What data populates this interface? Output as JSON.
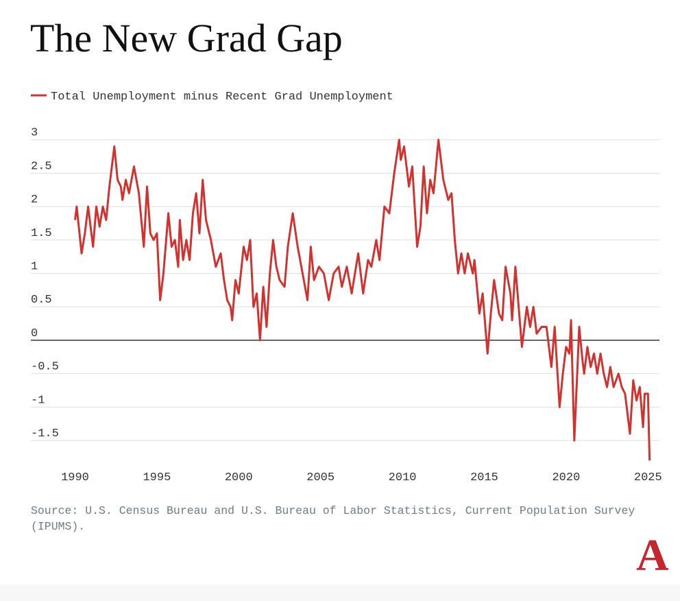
{
  "chart_data": {
    "type": "line",
    "title": "The New Grad Gap",
    "source": "Source: U.S. Census Bureau and U.S. Bureau of Labor Statistics, Current Population Survey (IPUMS).",
    "logo": "A",
    "legend_position": "top-left",
    "grid": true,
    "xlim": [
      1987.3,
      2025.7
    ],
    "ylim": [
      -1.9,
      3.1
    ],
    "xticks": [
      1990,
      1995,
      2000,
      2005,
      2010,
      2015,
      2020,
      2025
    ],
    "yticks": [
      3,
      2.5,
      2,
      1.5,
      1,
      0.5,
      0,
      -0.5,
      -1,
      -1.5
    ],
    "x": [
      1990,
      1990.1,
      1990.4,
      1990.6,
      1990.8,
      1991.1,
      1991.3,
      1991.5,
      1991.7,
      1991.9,
      1992.1,
      1992.3,
      1992.4,
      1992.6,
      1992.8,
      1992.9,
      1993.1,
      1993.3,
      1993.6,
      1993.9,
      1994.2,
      1994.4,
      1994.6,
      1994.8,
      1995.0,
      1995.2,
      1995.4,
      1995.7,
      1995.9,
      1996.1,
      1996.3,
      1996.4,
      1996.6,
      1996.8,
      1997.0,
      1997.2,
      1997.4,
      1997.6,
      1997.8,
      1998.0,
      1998.3,
      1998.6,
      1998.9,
      1999.1,
      1999.3,
      1999.5,
      1999.6,
      1999.8,
      2000.0,
      2000.3,
      2000.5,
      2000.7,
      2000.9,
      2001.1,
      2001.3,
      2001.5,
      2001.7,
      2001.9,
      2002.1,
      2002.3,
      2002.5,
      2002.8,
      2003.0,
      2003.3,
      2003.6,
      2003.9,
      2004.2,
      2004.4,
      2004.6,
      2004.9,
      2005.2,
      2005.5,
      2005.8,
      2006.1,
      2006.3,
      2006.6,
      2006.9,
      2007.3,
      2007.6,
      2007.9,
      2008.1,
      2008.4,
      2008.6,
      2008.9,
      2009.2,
      2009.5,
      2009.8,
      2009.9,
      2010.1,
      2010.4,
      2010.6,
      2010.9,
      2011.1,
      2011.3,
      2011.5,
      2011.7,
      2011.9,
      2012.2,
      2012.5,
      2012.8,
      2013.0,
      2013.2,
      2013.4,
      2013.6,
      2013.8,
      2014.0,
      2014.3,
      2014.4,
      2014.7,
      2014.9,
      2015.2,
      2015.4,
      2015.6,
      2015.9,
      2016.1,
      2016.3,
      2016.6,
      2016.7,
      2016.9,
      2017.1,
      2017.3,
      2017.6,
      2017.8,
      2018.0,
      2018.2,
      2018.5,
      2018.8,
      2019.1,
      2019.3,
      2019.5,
      2019.6,
      2019.8,
      2020.0,
      2020.2,
      2020.3,
      2020.5,
      2020.8,
      2021.0,
      2021.1,
      2021.3,
      2021.5,
      2021.7,
      2021.9,
      2022.1,
      2022.3,
      2022.5,
      2022.7,
      2022.9,
      2023.2,
      2023.4,
      2023.6,
      2023.9,
      2024.1,
      2024.3,
      2024.5,
      2024.7,
      2024.8,
      2025.0,
      2025.1
    ],
    "series": [
      {
        "name": "Total Unemployment minus Recent Grad Unemployment",
        "color": "#d0332f",
        "values": [
          1.8,
          2.0,
          1.3,
          1.6,
          2.0,
          1.4,
          2.0,
          1.7,
          2.0,
          1.8,
          2.3,
          2.7,
          2.9,
          2.4,
          2.3,
          2.1,
          2.4,
          2.2,
          2.6,
          2.2,
          1.4,
          2.3,
          1.6,
          1.5,
          1.6,
          0.6,
          1.0,
          1.9,
          1.4,
          1.5,
          1.1,
          1.8,
          1.2,
          1.5,
          1.2,
          1.9,
          2.2,
          1.6,
          2.4,
          1.8,
          1.5,
          1.1,
          1.3,
          0.9,
          0.6,
          0.5,
          0.3,
          0.9,
          0.7,
          1.4,
          1.2,
          1.5,
          0.5,
          0.7,
          0.0,
          0.8,
          0.2,
          1.0,
          1.5,
          1.1,
          0.9,
          0.8,
          1.4,
          1.9,
          1.4,
          1.0,
          0.6,
          1.4,
          0.9,
          1.1,
          1.0,
          0.6,
          1.0,
          1.1,
          0.8,
          1.1,
          0.7,
          1.3,
          0.7,
          1.2,
          1.1,
          1.5,
          1.2,
          2.0,
          1.9,
          2.5,
          3.0,
          2.7,
          2.9,
          2.3,
          2.6,
          1.4,
          1.7,
          2.6,
          1.9,
          2.4,
          2.2,
          3.0,
          2.4,
          2.1,
          2.2,
          1.5,
          1.0,
          1.3,
          1.0,
          1.3,
          1.0,
          1.2,
          0.4,
          0.7,
          -0.2,
          0.4,
          0.9,
          0.4,
          0.3,
          1.1,
          0.7,
          0.3,
          1.1,
          0.5,
          -0.1,
          0.5,
          0.2,
          0.5,
          0.1,
          0.2,
          0.2,
          -0.4,
          0.2,
          -0.6,
          -1.0,
          -0.5,
          -0.1,
          -0.2,
          0.3,
          -1.5,
          0.2,
          -0.3,
          -0.5,
          -0.1,
          -0.4,
          -0.2,
          -0.5,
          -0.2,
          -0.5,
          -0.7,
          -0.4,
          -0.7,
          -0.5,
          -0.7,
          -0.8,
          -1.4,
          -0.6,
          -0.9,
          -0.7,
          -1.3,
          -0.8,
          -0.8,
          -1.8
        ]
      }
    ]
  }
}
